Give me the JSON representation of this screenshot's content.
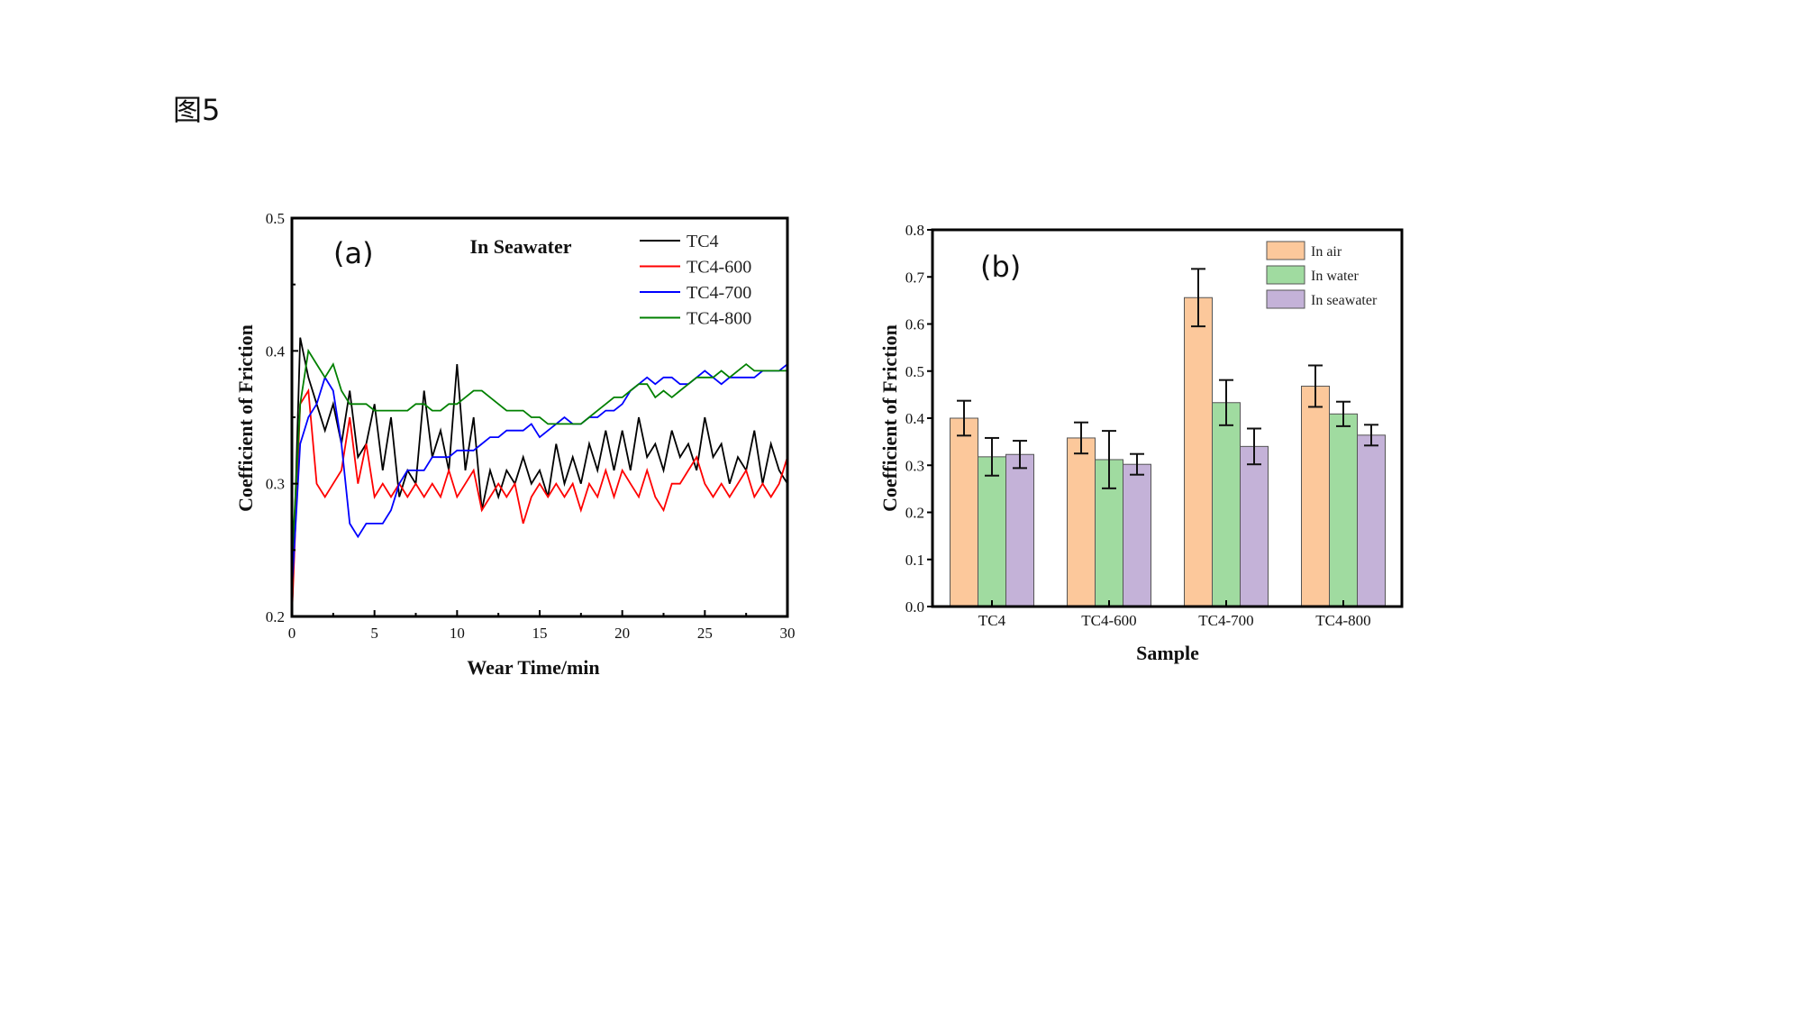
{
  "figure_label": "图5",
  "chart_data": [
    {
      "type": "line",
      "panel_label": "(a)",
      "annotation": "In Seawater",
      "xlabel": "Wear Time/min",
      "ylabel": "Coefficient of Friction",
      "xlim": [
        0,
        30
      ],
      "ylim": [
        0.2,
        0.5
      ],
      "xticks": [
        "0",
        "5",
        "10",
        "15",
        "20",
        "25",
        "30"
      ],
      "yticks": [
        "0.2",
        "0.3",
        "0.4",
        "0.5"
      ],
      "grid": false,
      "legend_position": "top-right",
      "x": [
        0,
        0.5,
        1,
        1.5,
        2,
        2.5,
        3,
        3.5,
        4,
        4.5,
        5,
        5.5,
        6,
        6.5,
        7,
        7.5,
        8,
        8.5,
        9,
        9.5,
        10,
        10.5,
        11,
        11.5,
        12,
        12.5,
        13,
        13.5,
        14,
        14.5,
        15,
        15.5,
        16,
        16.5,
        17,
        17.5,
        18,
        18.5,
        19,
        19.5,
        20,
        20.5,
        21,
        21.5,
        22,
        22.5,
        23,
        23.5,
        24,
        24.5,
        25,
        25.5,
        26,
        26.5,
        27,
        27.5,
        28,
        28.5,
        29,
        29.5,
        30
      ],
      "series": [
        {
          "name": "TC4",
          "color": "#000000",
          "values": [
            0.2,
            0.41,
            0.38,
            0.36,
            0.34,
            0.36,
            0.33,
            0.37,
            0.32,
            0.33,
            0.36,
            0.31,
            0.35,
            0.29,
            0.31,
            0.3,
            0.37,
            0.32,
            0.34,
            0.31,
            0.39,
            0.31,
            0.35,
            0.28,
            0.31,
            0.29,
            0.31,
            0.3,
            0.32,
            0.3,
            0.31,
            0.29,
            0.33,
            0.3,
            0.32,
            0.3,
            0.33,
            0.31,
            0.34,
            0.31,
            0.34,
            0.31,
            0.35,
            0.32,
            0.33,
            0.31,
            0.34,
            0.32,
            0.33,
            0.31,
            0.35,
            0.32,
            0.33,
            0.3,
            0.32,
            0.31,
            0.34,
            0.3,
            0.33,
            0.31,
            0.3
          ]
        },
        {
          "name": "TC4-600",
          "color": "#ff0000",
          "values": [
            0.2,
            0.36,
            0.37,
            0.3,
            0.29,
            0.3,
            0.31,
            0.35,
            0.3,
            0.33,
            0.29,
            0.3,
            0.29,
            0.3,
            0.29,
            0.3,
            0.29,
            0.3,
            0.29,
            0.31,
            0.29,
            0.3,
            0.31,
            0.28,
            0.29,
            0.3,
            0.29,
            0.3,
            0.27,
            0.29,
            0.3,
            0.29,
            0.3,
            0.29,
            0.3,
            0.28,
            0.3,
            0.29,
            0.31,
            0.29,
            0.31,
            0.3,
            0.29,
            0.31,
            0.29,
            0.28,
            0.3,
            0.3,
            0.31,
            0.32,
            0.3,
            0.29,
            0.3,
            0.29,
            0.3,
            0.31,
            0.29,
            0.3,
            0.29,
            0.3,
            0.32
          ]
        },
        {
          "name": "TC4-700",
          "color": "#0000ff",
          "values": [
            0.22,
            0.33,
            0.35,
            0.36,
            0.38,
            0.37,
            0.33,
            0.27,
            0.26,
            0.27,
            0.27,
            0.27,
            0.28,
            0.3,
            0.31,
            0.31,
            0.31,
            0.32,
            0.32,
            0.32,
            0.325,
            0.325,
            0.325,
            0.33,
            0.335,
            0.335,
            0.34,
            0.34,
            0.34,
            0.345,
            0.335,
            0.34,
            0.345,
            0.35,
            0.345,
            0.345,
            0.35,
            0.35,
            0.355,
            0.355,
            0.36,
            0.37,
            0.375,
            0.38,
            0.375,
            0.38,
            0.38,
            0.375,
            0.375,
            0.38,
            0.385,
            0.38,
            0.375,
            0.38,
            0.38,
            0.38,
            0.38,
            0.385,
            0.385,
            0.385,
            0.39
          ]
        },
        {
          "name": "TC4-800",
          "color": "#008000",
          "values": [
            0.24,
            0.36,
            0.4,
            0.39,
            0.38,
            0.39,
            0.37,
            0.36,
            0.36,
            0.36,
            0.355,
            0.355,
            0.355,
            0.355,
            0.355,
            0.36,
            0.36,
            0.355,
            0.355,
            0.36,
            0.36,
            0.365,
            0.37,
            0.37,
            0.365,
            0.36,
            0.355,
            0.355,
            0.355,
            0.35,
            0.35,
            0.345,
            0.345,
            0.345,
            0.345,
            0.345,
            0.35,
            0.355,
            0.36,
            0.365,
            0.365,
            0.37,
            0.375,
            0.375,
            0.365,
            0.37,
            0.365,
            0.37,
            0.375,
            0.38,
            0.38,
            0.38,
            0.385,
            0.38,
            0.385,
            0.39,
            0.385,
            0.385,
            0.385,
            0.385,
            0.385
          ]
        }
      ]
    },
    {
      "type": "bar",
      "panel_label": "(b)",
      "xlabel": "Sample",
      "ylabel": "Coefficient of Friction",
      "ylim": [
        0.0,
        0.8
      ],
      "yticks": [
        "0.0",
        "0.1",
        "0.2",
        "0.3",
        "0.4",
        "0.5",
        "0.6",
        "0.7",
        "0.8"
      ],
      "grid": false,
      "legend_position": "top-right",
      "categories": [
        "TC4",
        "TC4-600",
        "TC4-700",
        "TC4-800"
      ],
      "series": [
        {
          "name": "In air",
          "color": "#fcc89b",
          "values": [
            0.4,
            0.358,
            0.656,
            0.468
          ],
          "errors": [
            0.037,
            0.033,
            0.061,
            0.044
          ]
        },
        {
          "name": "In water",
          "color": "#a0dba0",
          "values": [
            0.318,
            0.312,
            0.433,
            0.409
          ],
          "errors": [
            0.04,
            0.061,
            0.048,
            0.026
          ]
        },
        {
          "name": "In seawater",
          "color": "#c4b2d8",
          "values": [
            0.323,
            0.302,
            0.34,
            0.364
          ],
          "errors": [
            0.029,
            0.022,
            0.038,
            0.022
          ]
        }
      ]
    }
  ]
}
